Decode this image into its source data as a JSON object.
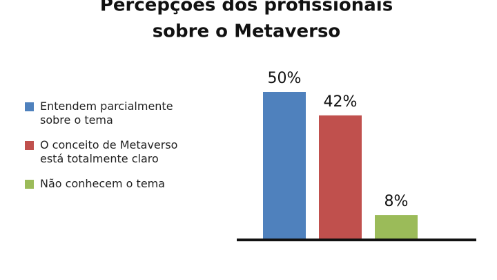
{
  "chart_data": {
    "type": "bar",
    "title": [
      "Percepções dos profissionais",
      "sobre o Metaverso"
    ],
    "categories": [
      "Entendem parcialmente sobre o tema",
      "O conceito de Metaverso está totalmente claro",
      "Não conhecem o tema"
    ],
    "values": [
      50,
      42,
      8
    ],
    "value_labels": [
      "50%",
      "42%",
      "8%"
    ],
    "colors": [
      "#4f81bd",
      "#c0504d",
      "#9bbb59"
    ]
  }
}
